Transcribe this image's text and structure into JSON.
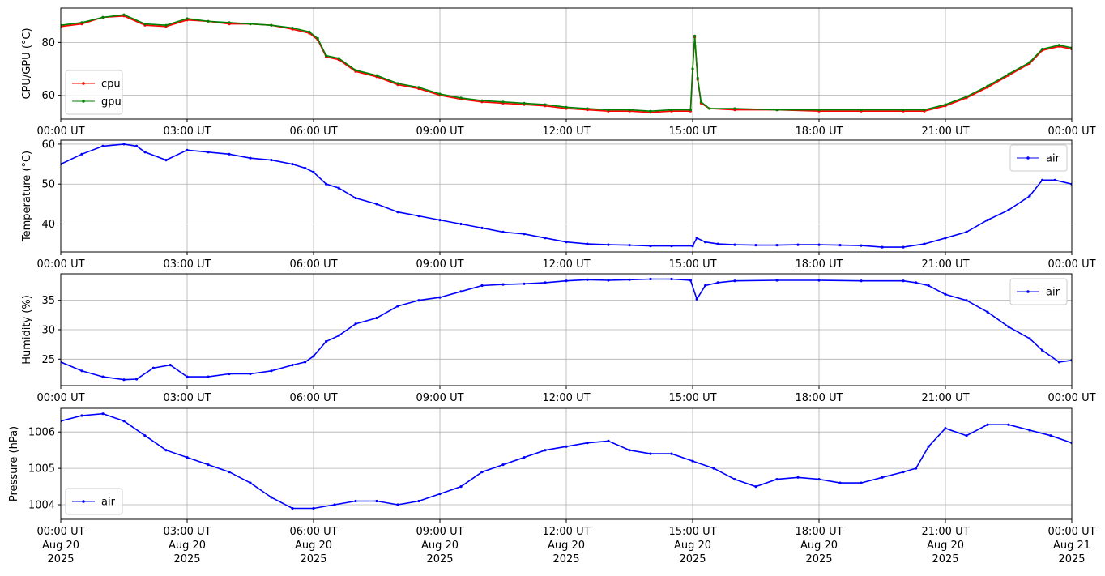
{
  "chart_data": [
    {
      "type": "line",
      "ylabel": "CPU/GPU (°C)",
      "ylim": [
        51,
        93
      ],
      "yticks": [
        60,
        80
      ],
      "xlim": [
        0,
        24
      ],
      "grid": true,
      "legend_placement": "lower-left",
      "x_tick_labels": [
        "00:00 UT",
        "03:00 UT",
        "06:00 UT",
        "09:00 UT",
        "12:00 UT",
        "15:00 UT",
        "18:00 UT",
        "21:00 UT",
        "00:00 UT"
      ],
      "series": [
        {
          "name": "cpu",
          "color": "#ff0000",
          "x": [
            0,
            0.5,
            1,
            1.5,
            2,
            2.5,
            3,
            3.5,
            4,
            4.5,
            5,
            5.5,
            5.9,
            6.1,
            6.3,
            6.6,
            7,
            7.5,
            8,
            8.5,
            9,
            9.5,
            10,
            10.5,
            11,
            11.5,
            12,
            12.5,
            13,
            13.5,
            14,
            14.5,
            14.95,
            15.0,
            15.05,
            15.12,
            15.2,
            15.4,
            16,
            17,
            18,
            19,
            20,
            20.5,
            21,
            21.5,
            22,
            22.5,
            23,
            23.3,
            23.7,
            24
          ],
          "values": [
            86,
            87,
            89.5,
            90,
            86.5,
            86,
            88.5,
            88,
            87,
            87,
            86.5,
            85,
            83.5,
            81,
            74.5,
            73.5,
            69,
            67,
            64,
            62.5,
            60,
            58.5,
            57.5,
            57,
            56.5,
            56,
            55,
            54.5,
            54,
            54,
            53.5,
            54,
            54,
            70,
            82,
            66,
            57,
            55,
            54.5,
            54.5,
            54,
            54,
            54,
            54,
            56,
            59,
            63,
            67.5,
            72,
            77,
            78.5,
            77.5
          ]
        },
        {
          "name": "gpu",
          "color": "#008000",
          "x": [
            0,
            0.5,
            1,
            1.5,
            2,
            2.5,
            3,
            3.5,
            4,
            4.5,
            5,
            5.5,
            5.9,
            6.1,
            6.3,
            6.6,
            7,
            7.5,
            8,
            8.5,
            9,
            9.5,
            10,
            10.5,
            11,
            11.5,
            12,
            12.5,
            13,
            13.5,
            14,
            14.5,
            14.95,
            15.0,
            15.05,
            15.12,
            15.2,
            15.4,
            16,
            17,
            18,
            19,
            20,
            20.5,
            21,
            21.5,
            22,
            22.5,
            23,
            23.3,
            23.7,
            24
          ],
          "values": [
            86.5,
            87.5,
            89.5,
            90.5,
            87,
            86.5,
            89,
            88,
            87.5,
            87,
            86.5,
            85.5,
            84,
            81.5,
            75,
            74,
            69.5,
            67.5,
            64.5,
            63,
            60.5,
            59,
            58,
            57.5,
            57,
            56.5,
            55.5,
            55,
            54.5,
            54.5,
            54,
            54.5,
            54.5,
            70,
            82.5,
            66.5,
            57.5,
            55,
            55,
            54.5,
            54.5,
            54.5,
            54.5,
            54.5,
            56.5,
            59.5,
            63.5,
            68,
            72.5,
            77.5,
            79,
            78
          ]
        }
      ]
    },
    {
      "type": "line",
      "ylabel": "Temperature (°C)",
      "ylim": [
        33,
        61
      ],
      "yticks": [
        40,
        50,
        60
      ],
      "xlim": [
        0,
        24
      ],
      "grid": true,
      "legend_placement": "upper-right",
      "x_tick_labels": [
        "00:00 UT",
        "03:00 UT",
        "06:00 UT",
        "09:00 UT",
        "12:00 UT",
        "15:00 UT",
        "18:00 UT",
        "21:00 UT",
        "00:00 UT"
      ],
      "series": [
        {
          "name": "air",
          "color": "#0000ff",
          "x": [
            0,
            0.5,
            1,
            1.5,
            1.8,
            2,
            2.5,
            3,
            3.5,
            4,
            4.5,
            5,
            5.5,
            5.8,
            6,
            6.3,
            6.6,
            7,
            7.5,
            8,
            8.5,
            9,
            9.5,
            10,
            10.5,
            11,
            11.5,
            12,
            12.5,
            13,
            13.5,
            14,
            14.5,
            15,
            15.1,
            15.3,
            15.6,
            16,
            16.5,
            17,
            17.5,
            18,
            18.5,
            19,
            19.5,
            20,
            20.5,
            21,
            21.5,
            22,
            22.5,
            23,
            23.3,
            23.6,
            24
          ],
          "values": [
            55,
            57.5,
            59.5,
            60,
            59.5,
            58,
            56,
            58.5,
            58,
            57.5,
            56.5,
            56,
            55,
            54,
            53,
            50,
            49,
            46.5,
            45,
            43,
            42,
            41,
            40,
            39,
            38,
            37.5,
            36.5,
            35.5,
            35,
            34.8,
            34.7,
            34.5,
            34.5,
            34.5,
            36.5,
            35.5,
            35,
            34.8,
            34.7,
            34.7,
            34.8,
            34.8,
            34.7,
            34.6,
            34.2,
            34.2,
            35,
            36.5,
            38,
            41,
            43.5,
            47,
            51,
            51,
            50
          ]
        }
      ]
    },
    {
      "type": "line",
      "ylabel": "Humidity (%)",
      "ylim": [
        20.5,
        39.5
      ],
      "yticks": [
        25,
        30,
        35
      ],
      "xlim": [
        0,
        24
      ],
      "grid": true,
      "legend_placement": "upper-right",
      "x_tick_labels": [
        "00:00 UT",
        "03:00 UT",
        "06:00 UT",
        "09:00 UT",
        "12:00 UT",
        "15:00 UT",
        "18:00 UT",
        "21:00 UT",
        "00:00 UT"
      ],
      "series": [
        {
          "name": "air",
          "color": "#0000ff",
          "x": [
            0,
            0.5,
            1,
            1.5,
            1.8,
            2.2,
            2.6,
            3,
            3.5,
            4,
            4.5,
            5,
            5.5,
            5.8,
            6,
            6.3,
            6.6,
            7,
            7.5,
            8,
            8.5,
            9,
            9.5,
            10,
            10.5,
            11,
            11.5,
            12,
            12.5,
            13,
            13.5,
            14,
            14.5,
            14.95,
            15.1,
            15.3,
            15.6,
            16,
            17,
            18,
            19,
            20,
            20.3,
            20.6,
            21,
            21.5,
            22,
            22.5,
            23,
            23.3,
            23.7,
            24
          ],
          "values": [
            24.5,
            23,
            22,
            21.5,
            21.6,
            23.5,
            24,
            22,
            22,
            22.5,
            22.5,
            23,
            24,
            24.5,
            25.5,
            28,
            29,
            31,
            32,
            34,
            35,
            35.5,
            36.5,
            37.5,
            37.7,
            37.8,
            38,
            38.3,
            38.5,
            38.4,
            38.5,
            38.6,
            38.6,
            38.4,
            35.2,
            37.5,
            38,
            38.3,
            38.4,
            38.4,
            38.3,
            38.3,
            38,
            37.5,
            36,
            35,
            33,
            30.5,
            28.5,
            26.5,
            24.5,
            24.8
          ]
        }
      ]
    },
    {
      "type": "line",
      "ylabel": "Pressure (hPa)",
      "ylim": [
        1003.6,
        1006.65
      ],
      "yticks": [
        1004,
        1005,
        1006
      ],
      "xlim": [
        0,
        24
      ],
      "grid": true,
      "legend_placement": "lower-left",
      "x_tick_labels": [
        "00:00 UT",
        "03:00 UT",
        "06:00 UT",
        "09:00 UT",
        "12:00 UT",
        "15:00 UT",
        "18:00 UT",
        "21:00 UT",
        "00:00 UT"
      ],
      "x_date_labels": [
        "Aug 20",
        "Aug 20",
        "Aug 20",
        "Aug 20",
        "Aug 20",
        "Aug 20",
        "Aug 20",
        "Aug 20",
        "Aug 21"
      ],
      "x_year_labels": [
        "2025",
        "2025",
        "2025",
        "2025",
        "2025",
        "2025",
        "2025",
        "2025",
        "2025"
      ],
      "series": [
        {
          "name": "air",
          "color": "#0000ff",
          "x": [
            0,
            0.5,
            1,
            1.5,
            2,
            2.5,
            3,
            3.5,
            4,
            4.5,
            5,
            5.5,
            6,
            6.5,
            7,
            7.5,
            8,
            8.5,
            9,
            9.5,
            10,
            10.5,
            11,
            11.5,
            12,
            12.5,
            13,
            13.5,
            14,
            14.5,
            15,
            15.5,
            16,
            16.5,
            17,
            17.5,
            18,
            18.5,
            19,
            19.5,
            20,
            20.3,
            20.6,
            21,
            21.5,
            22,
            22.5,
            23,
            23.5,
            24
          ],
          "values": [
            1006.3,
            1006.45,
            1006.5,
            1006.3,
            1005.9,
            1005.5,
            1005.3,
            1005.1,
            1004.9,
            1004.6,
            1004.2,
            1003.9,
            1003.9,
            1004.0,
            1004.1,
            1004.1,
            1004.0,
            1004.1,
            1004.3,
            1004.5,
            1004.9,
            1005.1,
            1005.3,
            1005.5,
            1005.6,
            1005.7,
            1005.75,
            1005.5,
            1005.4,
            1005.4,
            1005.2,
            1005.0,
            1004.7,
            1004.5,
            1004.7,
            1004.75,
            1004.7,
            1004.6,
            1004.6,
            1004.75,
            1004.9,
            1005.0,
            1005.6,
            1006.1,
            1005.9,
            1006.2,
            1006.2,
            1006.05,
            1005.9,
            1005.7
          ]
        }
      ]
    }
  ]
}
